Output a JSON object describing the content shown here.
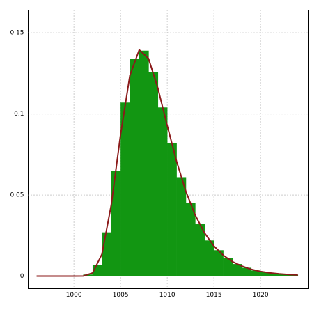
{
  "chart_data": {
    "type": "histogram",
    "bins": [
      996,
      997,
      998,
      999,
      1000,
      1001,
      1002,
      1003,
      1004,
      1005,
      1006,
      1007,
      1008,
      1009,
      1010,
      1011,
      1012,
      1013,
      1014,
      1015,
      1016,
      1017,
      1018,
      1019,
      1020,
      1021,
      1022,
      1023,
      1024
    ],
    "counts": [
      0,
      0,
      0,
      0,
      5e-05,
      0.001,
      0.007,
      0.027,
      0.065,
      0.107,
      0.134,
      0.139,
      0.126,
      0.104,
      0.082,
      0.061,
      0.045,
      0.032,
      0.022,
      0.016,
      0.011,
      0.0075,
      0.0052,
      0.0035,
      0.0024,
      0.0017,
      0.0012,
      0.0008
    ],
    "color": "#129612",
    "line": {
      "color": "#8b1a1a",
      "x": [
        996,
        997,
        998,
        999,
        1000,
        1001,
        1002,
        1003,
        1004,
        1005,
        1006,
        1007,
        1008,
        1009,
        1010,
        1011,
        1012,
        1013,
        1014,
        1015,
        1016,
        1017,
        1018,
        1019,
        1020,
        1021,
        1022,
        1023,
        1024
      ],
      "values": [
        0,
        0,
        0,
        0,
        0,
        0.0001,
        0.002,
        0.0135,
        0.0439,
        0.0873,
        0.1238,
        0.1395,
        0.1341,
        0.1158,
        0.0928,
        0.0708,
        0.0522,
        0.0376,
        0.0266,
        0.0186,
        0.0129,
        0.0089,
        0.0062,
        0.0042,
        0.0029,
        0.002,
        0.0014,
        0.001,
        0.0007
      ]
    },
    "xlim": [
      995.1,
      1025.1
    ],
    "ylim": [
      -0.0077,
      0.164
    ],
    "xticks": [
      1000,
      1005,
      1010,
      1015,
      1020
    ],
    "yticks": [
      0,
      0.05,
      0.1,
      0.15
    ],
    "grid": true
  }
}
